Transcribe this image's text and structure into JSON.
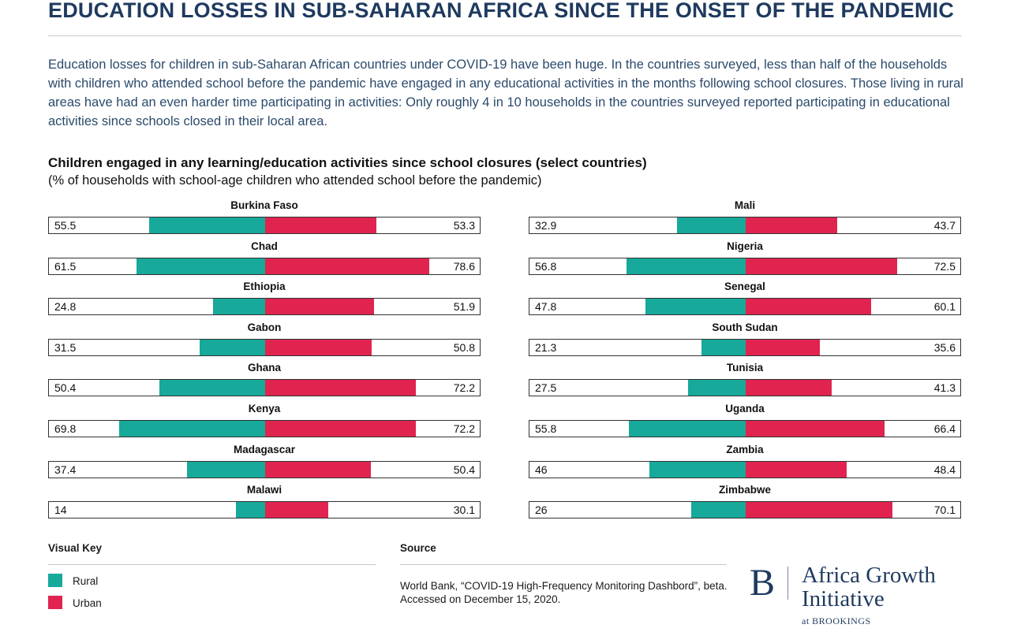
{
  "header": {
    "title": "EDUCATION LOSSES IN SUB-SAHARAN AFRICA SINCE THE ONSET OF THE PANDEMIC",
    "intro": "Education losses for children in sub-Saharan African countries under COVID-19 have been huge. In the countries surveyed, less than half of the households with children who attended school before the pandemic have engaged in any educational activities in the months following school closures. Those living in rural areas have had an even harder time participating in activities: Only roughly 4 in 10 households in the countries surveyed reported participating in educational activities since schools closed in their local area."
  },
  "chart_data": {
    "type": "bar",
    "title": "Children engaged in any learning/education activities since school closures (select countries)",
    "subtitle": "(% of households with school-age children who attended school before the pandemic)",
    "xlim": [
      0,
      100
    ],
    "grid": false,
    "colors": {
      "rural": "#17a99a",
      "urban": "#e0244f"
    },
    "countries": [
      {
        "name": "Burkina Faso",
        "rural": "55.5",
        "urban": "53.3"
      },
      {
        "name": "Chad",
        "rural": "61.5",
        "urban": "78.6"
      },
      {
        "name": "Ethiopia",
        "rural": "24.8",
        "urban": "51.9"
      },
      {
        "name": "Gabon",
        "rural": "31.5",
        "urban": "50.8"
      },
      {
        "name": "Ghana",
        "rural": "50.4",
        "urban": "72.2"
      },
      {
        "name": "Kenya",
        "rural": "69.8",
        "urban": "72.2"
      },
      {
        "name": "Madagascar",
        "rural": "37.4",
        "urban": "50.4"
      },
      {
        "name": "Malawi",
        "rural": "14",
        "urban": "30.1"
      },
      {
        "name": "Mali",
        "rural": "32.9",
        "urban": "43.7"
      },
      {
        "name": "Nigeria",
        "rural": "56.8",
        "urban": "72.5"
      },
      {
        "name": "Senegal",
        "rural": "47.8",
        "urban": "60.1"
      },
      {
        "name": "South Sudan",
        "rural": "21.3",
        "urban": "35.6"
      },
      {
        "name": "Tunisia",
        "rural": "27.5",
        "urban": "41.3"
      },
      {
        "name": "Uganda",
        "rural": "55.8",
        "urban": "66.4"
      },
      {
        "name": "Zambia",
        "rural": "46",
        "urban": "48.4"
      },
      {
        "name": "Zimbabwe",
        "rural": "26",
        "urban": "70.1"
      }
    ]
  },
  "key": {
    "title": "Visual Key",
    "rural_label": "Rural",
    "urban_label": "Urban"
  },
  "source": {
    "title": "Source",
    "text": "World Bank, “COVID-19 High-Frequency Monitoring Dashbord”, beta. Accessed on December 15, 2020."
  },
  "logo": {
    "letter": "B",
    "name": "Africa Growth Initiative",
    "sub": "at BROOKINGS"
  }
}
